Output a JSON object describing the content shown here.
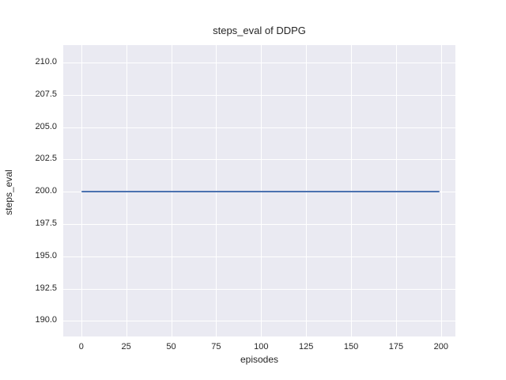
{
  "chart_data": {
    "type": "line",
    "title": "steps_eval of DDPG",
    "xlabel": "episodes",
    "ylabel": "steps_eval",
    "series": [
      {
        "name": "DDPG",
        "color": "#4c72b0",
        "x": [
          0,
          199
        ],
        "y": [
          200,
          200
        ]
      }
    ],
    "xlim": [
      -10,
      208
    ],
    "ylim": [
      188.8,
      211.35
    ],
    "xticks": [
      0,
      25,
      50,
      75,
      100,
      125,
      150,
      175,
      200
    ],
    "xtick_labels": [
      "0",
      "25",
      "50",
      "75",
      "100",
      "125",
      "150",
      "175",
      "200"
    ],
    "yticks": [
      190.0,
      192.5,
      195.0,
      197.5,
      200.0,
      202.5,
      205.0,
      207.5,
      210.0
    ],
    "ytick_labels": [
      "190.0",
      "192.5",
      "195.0",
      "197.5",
      "200.0",
      "202.5",
      "205.0",
      "207.5",
      "210.0"
    ],
    "grid": true,
    "legend": "none",
    "plot_background": "#eaeaf2",
    "grid_color": "#ffffff",
    "text_color": "#262626"
  }
}
